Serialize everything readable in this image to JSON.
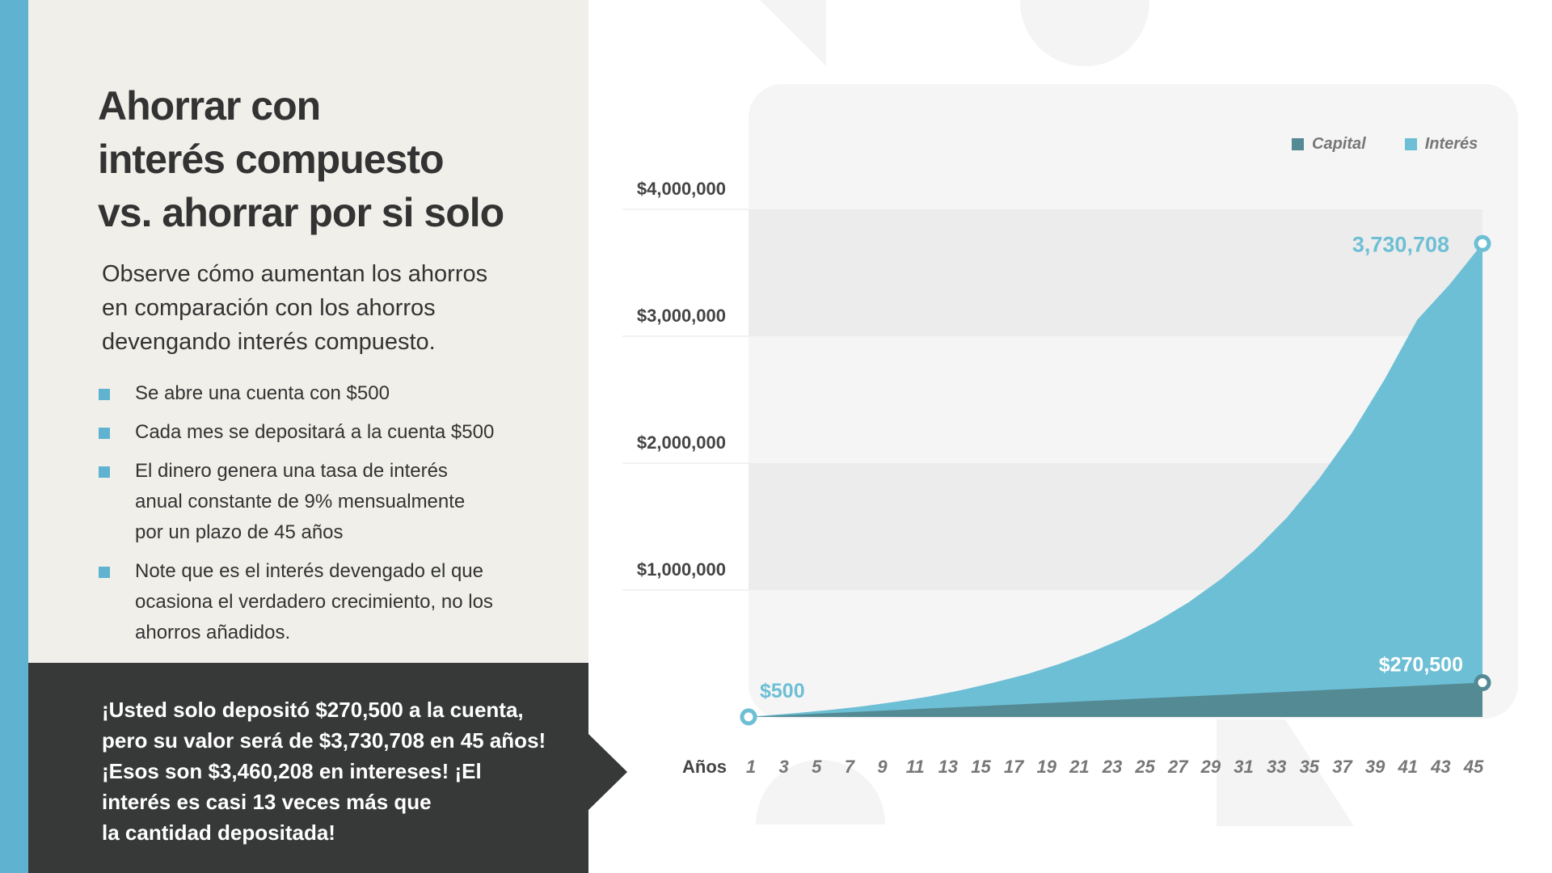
{
  "left": {
    "title_lines": [
      "Ahorrar con",
      "interés compuesto",
      "vs. ahorrar por si solo"
    ],
    "subtitle_lines": [
      "Observe cómo aumentan los ahorros",
      "en comparación con los ahorros",
      "devengando interés compuesto."
    ],
    "bullets": [
      {
        "lines": [
          "Se abre una cuenta con $500"
        ]
      },
      {
        "lines": [
          "Cada mes se depositará a la cuenta $500"
        ]
      },
      {
        "lines": [
          "El dinero genera una tasa de interés",
          "anual constante de 9% mensualmente",
          "por un plazo de 45 años"
        ]
      },
      {
        "lines": [
          "Note que es el interés devengado el que",
          "ocasiona el verdadero crecimiento, no los",
          "ahorros añadidos."
        ]
      }
    ],
    "callout_lines": [
      "¡Usted solo depositó $270,500 a la cuenta,",
      "pero su valor será de $3,730,708 en 45 años!",
      "¡Esos son $3,460,208 en intereses! ¡El",
      "interés es casi 13 veces más que",
      "la cantidad depositada!"
    ]
  },
  "colors": {
    "accent": "#5fb3d1",
    "capital": "#548a93",
    "interest": "#6dbfd5",
    "dark_panel": "#373838",
    "panel_bg": "#f0efe9"
  },
  "chart_data": {
    "type": "area",
    "xlabel": "Años",
    "ylabel": "",
    "x": [
      1,
      3,
      5,
      7,
      9,
      11,
      13,
      15,
      17,
      19,
      21,
      23,
      25,
      27,
      29,
      31,
      33,
      35,
      37,
      39,
      41,
      43,
      45
    ],
    "ylim": [
      0,
      4000000
    ],
    "y_ticks": [
      {
        "value": 1000000,
        "label": "$1,000,000"
      },
      {
        "value": 2000000,
        "label": "$2,000,000"
      },
      {
        "value": 3000000,
        "label": "$3,000,000"
      },
      {
        "value": 4000000,
        "label": "$4,000,000"
      }
    ],
    "legend_position": "top-right",
    "legend": [
      {
        "name": "Capital",
        "color": "#548a93"
      },
      {
        "name": "Interés",
        "color": "#6dbfd5"
      }
    ],
    "series": [
      {
        "name": "Capital",
        "start": {
          "year": 0,
          "value": 500
        },
        "end": {
          "year": 45,
          "value": 270500
        }
      },
      {
        "name": "Interés",
        "start": {
          "year": 0,
          "value": 500
        },
        "end": {
          "year": 45,
          "value": 3730708
        },
        "values": [
          11000,
          32000,
          56000,
          85000,
          120000,
          160000,
          210000,
          270000,
          335000,
          415000,
          510000,
          620000,
          750000,
          905000,
          1090000,
          1310000,
          1570000,
          1880000,
          2240000,
          2660000,
          3130000,
          3410000,
          3730708
        ]
      }
    ],
    "annotations": [
      {
        "label": "$500",
        "series": "Capital",
        "year": 0,
        "value": 500
      },
      {
        "label": "$270,500",
        "series": "Capital",
        "year": 45,
        "value": 270500
      },
      {
        "label": "3,730,708",
        "series": "Interés",
        "year": 45,
        "value": 3730708
      }
    ]
  }
}
